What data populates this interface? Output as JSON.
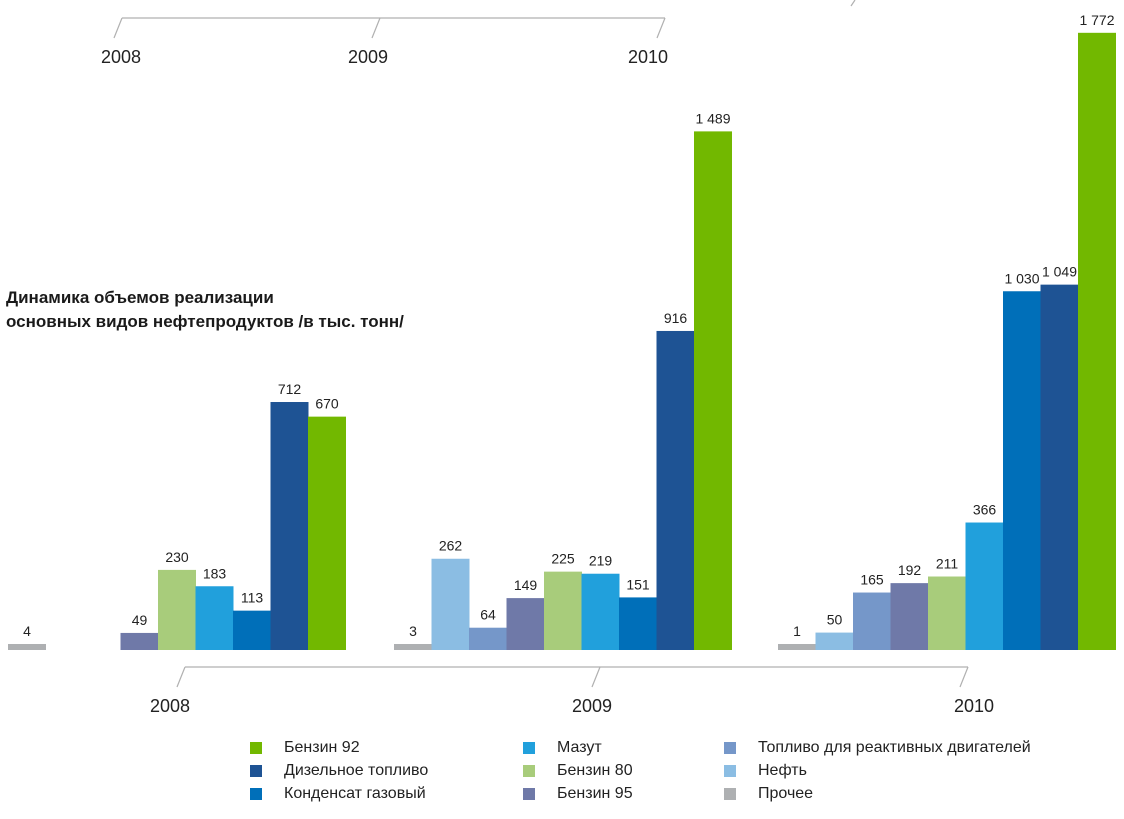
{
  "chart_data": {
    "type": "bar",
    "title_lines": [
      "Динамика объемов реализации",
      "основных видов нефтепродуктов /в тыс. тонн/"
    ],
    "top_axis_years": [
      "2008",
      "2009",
      "2010"
    ],
    "categories": [
      "2008",
      "2009",
      "2010"
    ],
    "series": [
      {
        "name": "Прочее",
        "color": "#aeb0b2",
        "values": [
          4,
          3,
          1
        ]
      },
      {
        "name": "Нефть",
        "color": "#8bbde3",
        "values": [
          null,
          262,
          50
        ]
      },
      {
        "name": "Топливо для реактивных двигателей",
        "color": "#7597c9",
        "values": [
          null,
          64,
          165
        ]
      },
      {
        "name": "Бензин 95",
        "color": "#6f79a8",
        "values": [
          49,
          149,
          192
        ]
      },
      {
        "name": "Бензин 80",
        "color": "#a8cc7b",
        "values": [
          230,
          225,
          211
        ]
      },
      {
        "name": "Мазут",
        "color": "#21a0dc",
        "values": [
          183,
          219,
          366
        ]
      },
      {
        "name": "Конденсат газовый",
        "color": "#006fb9",
        "values": [
          113,
          151,
          1030
        ]
      },
      {
        "name": "Дизельное топливо",
        "color": "#1e5394",
        "values": [
          712,
          916,
          1049
        ]
      },
      {
        "name": "Бензин 92",
        "color": "#72b800",
        "values": [
          670,
          1489,
          1772
        ]
      }
    ],
    "value_labels": {
      "Прочее": [
        "4",
        "3",
        "1"
      ],
      "Нефть": [
        "",
        "262",
        "50"
      ],
      "Топливо для реактивных двигателей": [
        "",
        "64",
        "165"
      ],
      "Бензин 95": [
        "49",
        "149",
        "192"
      ],
      "Бензин 80": [
        "230",
        "225",
        "211"
      ],
      "Мазут": [
        "183",
        "219",
        "366"
      ],
      "Конденсат газовый": [
        "113",
        "151",
        "1 030"
      ],
      "Дизельное топливо": [
        "712",
        "916",
        "1 049"
      ],
      "Бензин 92": [
        "670",
        "1 489",
        "1 772"
      ]
    },
    "ylim": [
      0,
      1800
    ],
    "grid": false,
    "legend_placement": "bottom",
    "legend_order": [
      "Бензин 92",
      "Дизельное топливо",
      "Конденсат газовый",
      "Мазут",
      "Бензин 80",
      "Бензин 95",
      "Топливо для реактивных двигателей",
      "Нефть",
      "Прочее"
    ]
  }
}
